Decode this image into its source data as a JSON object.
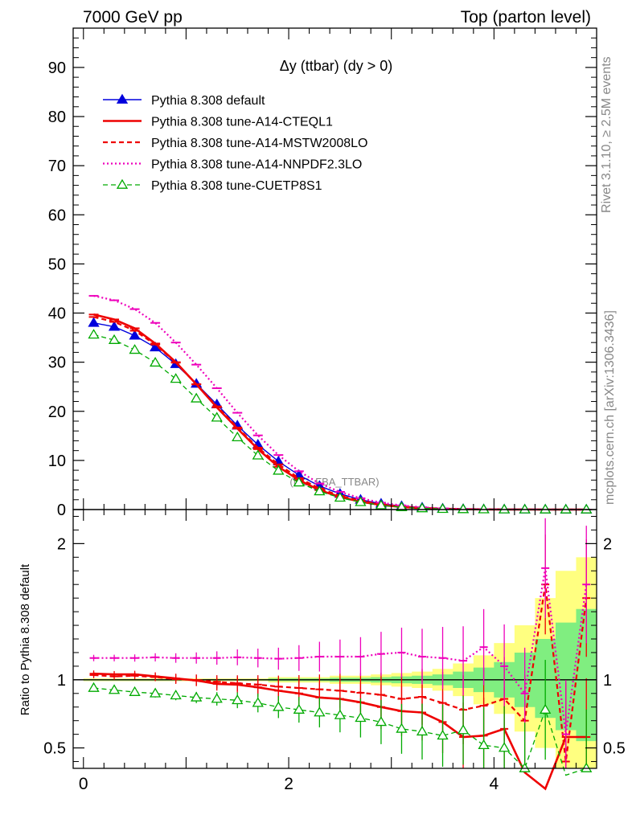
{
  "header": {
    "left": "7000 GeV pp",
    "right": "Top (parton level)"
  },
  "side_labels": {
    "rivet": "Rivet 3.1.10, ≥ 2.5M events",
    "mcplots": "mcplots.cern.ch [arXiv:1306.3436]"
  },
  "chart_data": [
    {
      "type": "line",
      "title": "Δy (ttbar) (dy > 0)",
      "watermark": "(MC_FBA_TTBAR)",
      "xlim": [
        -0.1,
        5.0
      ],
      "ylim": [
        0,
        98
      ],
      "yticks": [
        0,
        10,
        20,
        30,
        40,
        50,
        60,
        70,
        80,
        90
      ],
      "x": [
        0.1,
        0.3,
        0.5,
        0.7,
        0.9,
        1.1,
        1.3,
        1.5,
        1.7,
        1.9,
        2.1,
        2.3,
        2.5,
        2.7,
        2.9,
        3.1,
        3.3,
        3.5,
        3.7,
        3.9,
        4.1,
        4.3,
        4.5,
        4.7,
        4.9
      ],
      "series": [
        {
          "name": "Pythia 8.308 default",
          "color": "#0000dd",
          "style": "solid-triangle",
          "values": [
            38,
            37.2,
            35.4,
            33,
            29.6,
            25.6,
            21.4,
            17.1,
            13.2,
            9.8,
            7.0,
            4.8,
            3.2,
            2.0,
            1.2,
            0.7,
            0.4,
            0.2,
            0.1,
            0.05,
            0.03,
            0.02,
            0.01,
            0.005,
            0.003
          ]
        },
        {
          "name": "Pythia 8.308 tune-A14-CTEQL1",
          "color": "#ee0000",
          "style": "solid",
          "values": [
            39.7,
            38.7,
            36.9,
            33.8,
            30.0,
            25.5,
            20.8,
            16.5,
            12.3,
            8.7,
            6.0,
            3.95,
            2.55,
            1.6,
            0.93,
            0.52,
            0.3,
            0.15,
            0.07,
            0.04,
            0.02,
            0.01,
            0.005,
            0.003,
            0.002
          ]
        },
        {
          "name": "Pythia 8.308 tune-A14-MSTW2008LO",
          "color": "#ee0000",
          "style": "dashed",
          "values": [
            39.2,
            38.2,
            36.4,
            33.6,
            29.9,
            25.5,
            21.0,
            16.7,
            12.6,
            9.2,
            6.4,
            4.3,
            2.8,
            1.8,
            1.05,
            0.6,
            0.35,
            0.18,
            0.09,
            0.05,
            0.03,
            0.015,
            0.008,
            0.004,
            0.002
          ]
        },
        {
          "name": "Pythia 8.308 tune-A14-NNPDF2.3LO",
          "color": "#ee00bb",
          "style": "dotted",
          "values": [
            43.5,
            42.6,
            40.8,
            38.0,
            34.0,
            29.5,
            24.7,
            19.7,
            15.1,
            11.1,
            7.8,
            5.3,
            3.6,
            2.3,
            1.4,
            0.85,
            0.47,
            0.24,
            0.12,
            0.06,
            0.03,
            0.015,
            0.01,
            0.006,
            0.003
          ]
        },
        {
          "name": "Pythia 8.308 tune-CUETP8S1",
          "color": "#00aa00",
          "style": "dashed-open-triangle",
          "values": [
            35.6,
            34.5,
            32.5,
            29.9,
            26.6,
            22.6,
            18.7,
            14.7,
            11.0,
            7.9,
            5.5,
            3.7,
            2.4,
            1.5,
            0.85,
            0.47,
            0.25,
            0.12,
            0.06,
            0.03,
            0.015,
            0.007,
            0.004,
            0.002,
            0.001
          ]
        }
      ]
    },
    {
      "type": "line",
      "ylabel": "Ratio to Pythia 8.308 default",
      "xlim": [
        -0.1,
        5.0
      ],
      "ylim": [
        0.35,
        2.25
      ],
      "xticks": [
        0,
        2,
        4
      ],
      "yticks_labels": [
        "0.5",
        "1",
        "2"
      ],
      "yticks": [
        0.5,
        1,
        2
      ],
      "x": [
        0.1,
        0.3,
        0.5,
        0.7,
        0.9,
        1.1,
        1.3,
        1.5,
        1.7,
        1.9,
        2.1,
        2.3,
        2.5,
        2.7,
        2.9,
        3.1,
        3.3,
        3.5,
        3.7,
        3.9,
        4.1,
        4.3,
        4.5,
        4.7,
        4.9
      ],
      "band_yellow_lo": [
        0.99,
        0.99,
        0.99,
        0.99,
        0.99,
        0.99,
        0.99,
        0.99,
        0.99,
        0.98,
        0.98,
        0.98,
        0.97,
        0.97,
        0.96,
        0.95,
        0.94,
        0.92,
        0.88,
        0.82,
        0.75,
        0.62,
        0.5,
        0.35,
        0.35
      ],
      "band_yellow_hi": [
        1.01,
        1.01,
        1.01,
        1.01,
        1.01,
        1.01,
        1.01,
        1.01,
        1.01,
        1.02,
        1.02,
        1.02,
        1.03,
        1.03,
        1.04,
        1.05,
        1.06,
        1.08,
        1.12,
        1.18,
        1.27,
        1.4,
        1.6,
        1.8,
        1.9
      ],
      "band_green_lo": [
        0.995,
        0.995,
        0.995,
        0.995,
        0.995,
        0.995,
        0.995,
        0.995,
        0.995,
        0.99,
        0.99,
        0.99,
        0.985,
        0.985,
        0.98,
        0.975,
        0.97,
        0.96,
        0.94,
        0.91,
        0.87,
        0.8,
        0.72,
        0.63,
        0.55
      ],
      "band_green_hi": [
        1.005,
        1.005,
        1.005,
        1.005,
        1.005,
        1.005,
        1.005,
        1.005,
        1.005,
        1.01,
        1.01,
        1.01,
        1.015,
        1.015,
        1.02,
        1.025,
        1.03,
        1.04,
        1.06,
        1.09,
        1.13,
        1.2,
        1.3,
        1.42,
        1.52
      ],
      "series": [
        {
          "name": "Pythia 8.308 tune-A14-CTEQL1",
          "color": "#ee0000",
          "style": "solid",
          "values": [
            1.045,
            1.04,
            1.04,
            1.025,
            1.01,
            0.995,
            0.97,
            0.965,
            0.945,
            0.92,
            0.9,
            0.87,
            0.86,
            0.835,
            0.8,
            0.77,
            0.76,
            0.69,
            0.58,
            0.59,
            0.64,
            0.32,
            0.2,
            0.58,
            0.58
          ]
        },
        {
          "name": "Pythia 8.308 tune-A14-MSTW2008LO",
          "color": "#ee0000",
          "style": "dashed",
          "values": [
            1.035,
            1.025,
            1.03,
            1.02,
            1.005,
            0.998,
            0.985,
            0.975,
            0.965,
            0.95,
            0.94,
            0.93,
            0.92,
            0.905,
            0.89,
            0.86,
            0.875,
            0.83,
            0.78,
            0.81,
            0.86,
            0.7,
            1.7,
            0.4,
            1.6
          ]
        },
        {
          "name": "Pythia 8.308 tune-A14-NNPDF2.3LO",
          "color": "#ee00bb",
          "style": "dotted",
          "values": [
            1.16,
            1.16,
            1.16,
            1.165,
            1.16,
            1.16,
            1.16,
            1.165,
            1.16,
            1.155,
            1.16,
            1.17,
            1.17,
            1.17,
            1.19,
            1.2,
            1.17,
            1.16,
            1.14,
            1.24,
            1.1,
            0.9,
            1.82,
            0.6,
            1.7
          ]
        },
        {
          "name": "Pythia 8.308 tune-CUETP8S1",
          "color": "#00aa00",
          "style": "dashed-open-triangle",
          "values": [
            0.94,
            0.925,
            0.91,
            0.9,
            0.885,
            0.87,
            0.86,
            0.85,
            0.83,
            0.8,
            0.78,
            0.76,
            0.74,
            0.72,
            0.69,
            0.64,
            0.62,
            0.59,
            0.63,
            0.52,
            0.5,
            0.35,
            0.78,
            0.3,
            0.35
          ]
        }
      ]
    }
  ]
}
